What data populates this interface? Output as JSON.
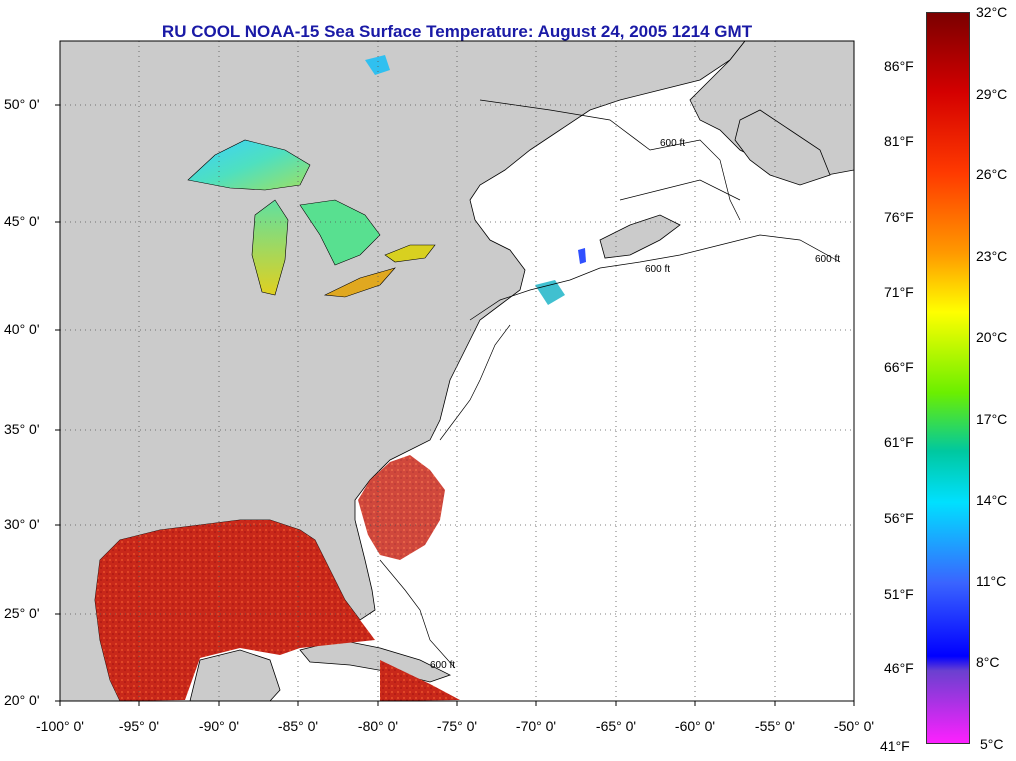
{
  "title": "RU COOL  NOAA-15  Sea Surface Temperature:  August 24, 2005 1214 GMT",
  "map": {
    "lon_range": [
      -100,
      -50
    ],
    "lat_range": [
      20,
      52.5
    ],
    "lat_ticks": [
      20,
      25,
      30,
      35,
      40,
      45,
      50
    ],
    "lon_ticks": [
      -100,
      -95,
      -90,
      -85,
      -80,
      -75,
      -70,
      -65,
      -60,
      -55,
      -50
    ],
    "lat_labels": [
      "20° 0'",
      "25° 0'",
      "30° 0'",
      "35° 0'",
      "40° 0'",
      "45° 0'",
      "50° 0'"
    ],
    "lon_labels": [
      "-100° 0'",
      "-95° 0'",
      "-90° 0'",
      "-85° 0'",
      "-80° 0'",
      "-75° 0'",
      "-70° 0'",
      "-65° 0'",
      "-60° 0'",
      "-55° 0'",
      "-50° 0'"
    ],
    "land_color": "#cbcbcb",
    "ocean_color": "#ffffff",
    "gulf_color": "#c8281a",
    "contour_label": "600 ft"
  },
  "colorbar": {
    "celsius_labels": [
      "32°C",
      "29°C",
      "26°C",
      "23°C",
      "20°C",
      "17°C",
      "14°C",
      "11°C",
      "8°C",
      "5°C"
    ],
    "fahrenheit_labels": [
      "86°F",
      "81°F",
      "76°F",
      "71°F",
      "66°F",
      "61°F",
      "56°F",
      "51°F",
      "46°F",
      "41°F"
    ],
    "celsius_values": [
      32,
      29,
      26,
      23,
      20,
      17,
      14,
      11,
      8,
      5
    ],
    "fahrenheit_values": [
      86,
      81,
      76,
      71,
      66,
      61,
      56,
      51,
      46,
      41
    ],
    "range_c": [
      5,
      32
    ],
    "colors": [
      "#7a0000",
      "#d40000",
      "#ff3a00",
      "#ff9a00",
      "#ffff00",
      "#6bef00",
      "#00c8a0",
      "#00e0ff",
      "#3a64ff",
      "#0000ff",
      "#6a40d0",
      "#ff20ff"
    ]
  }
}
